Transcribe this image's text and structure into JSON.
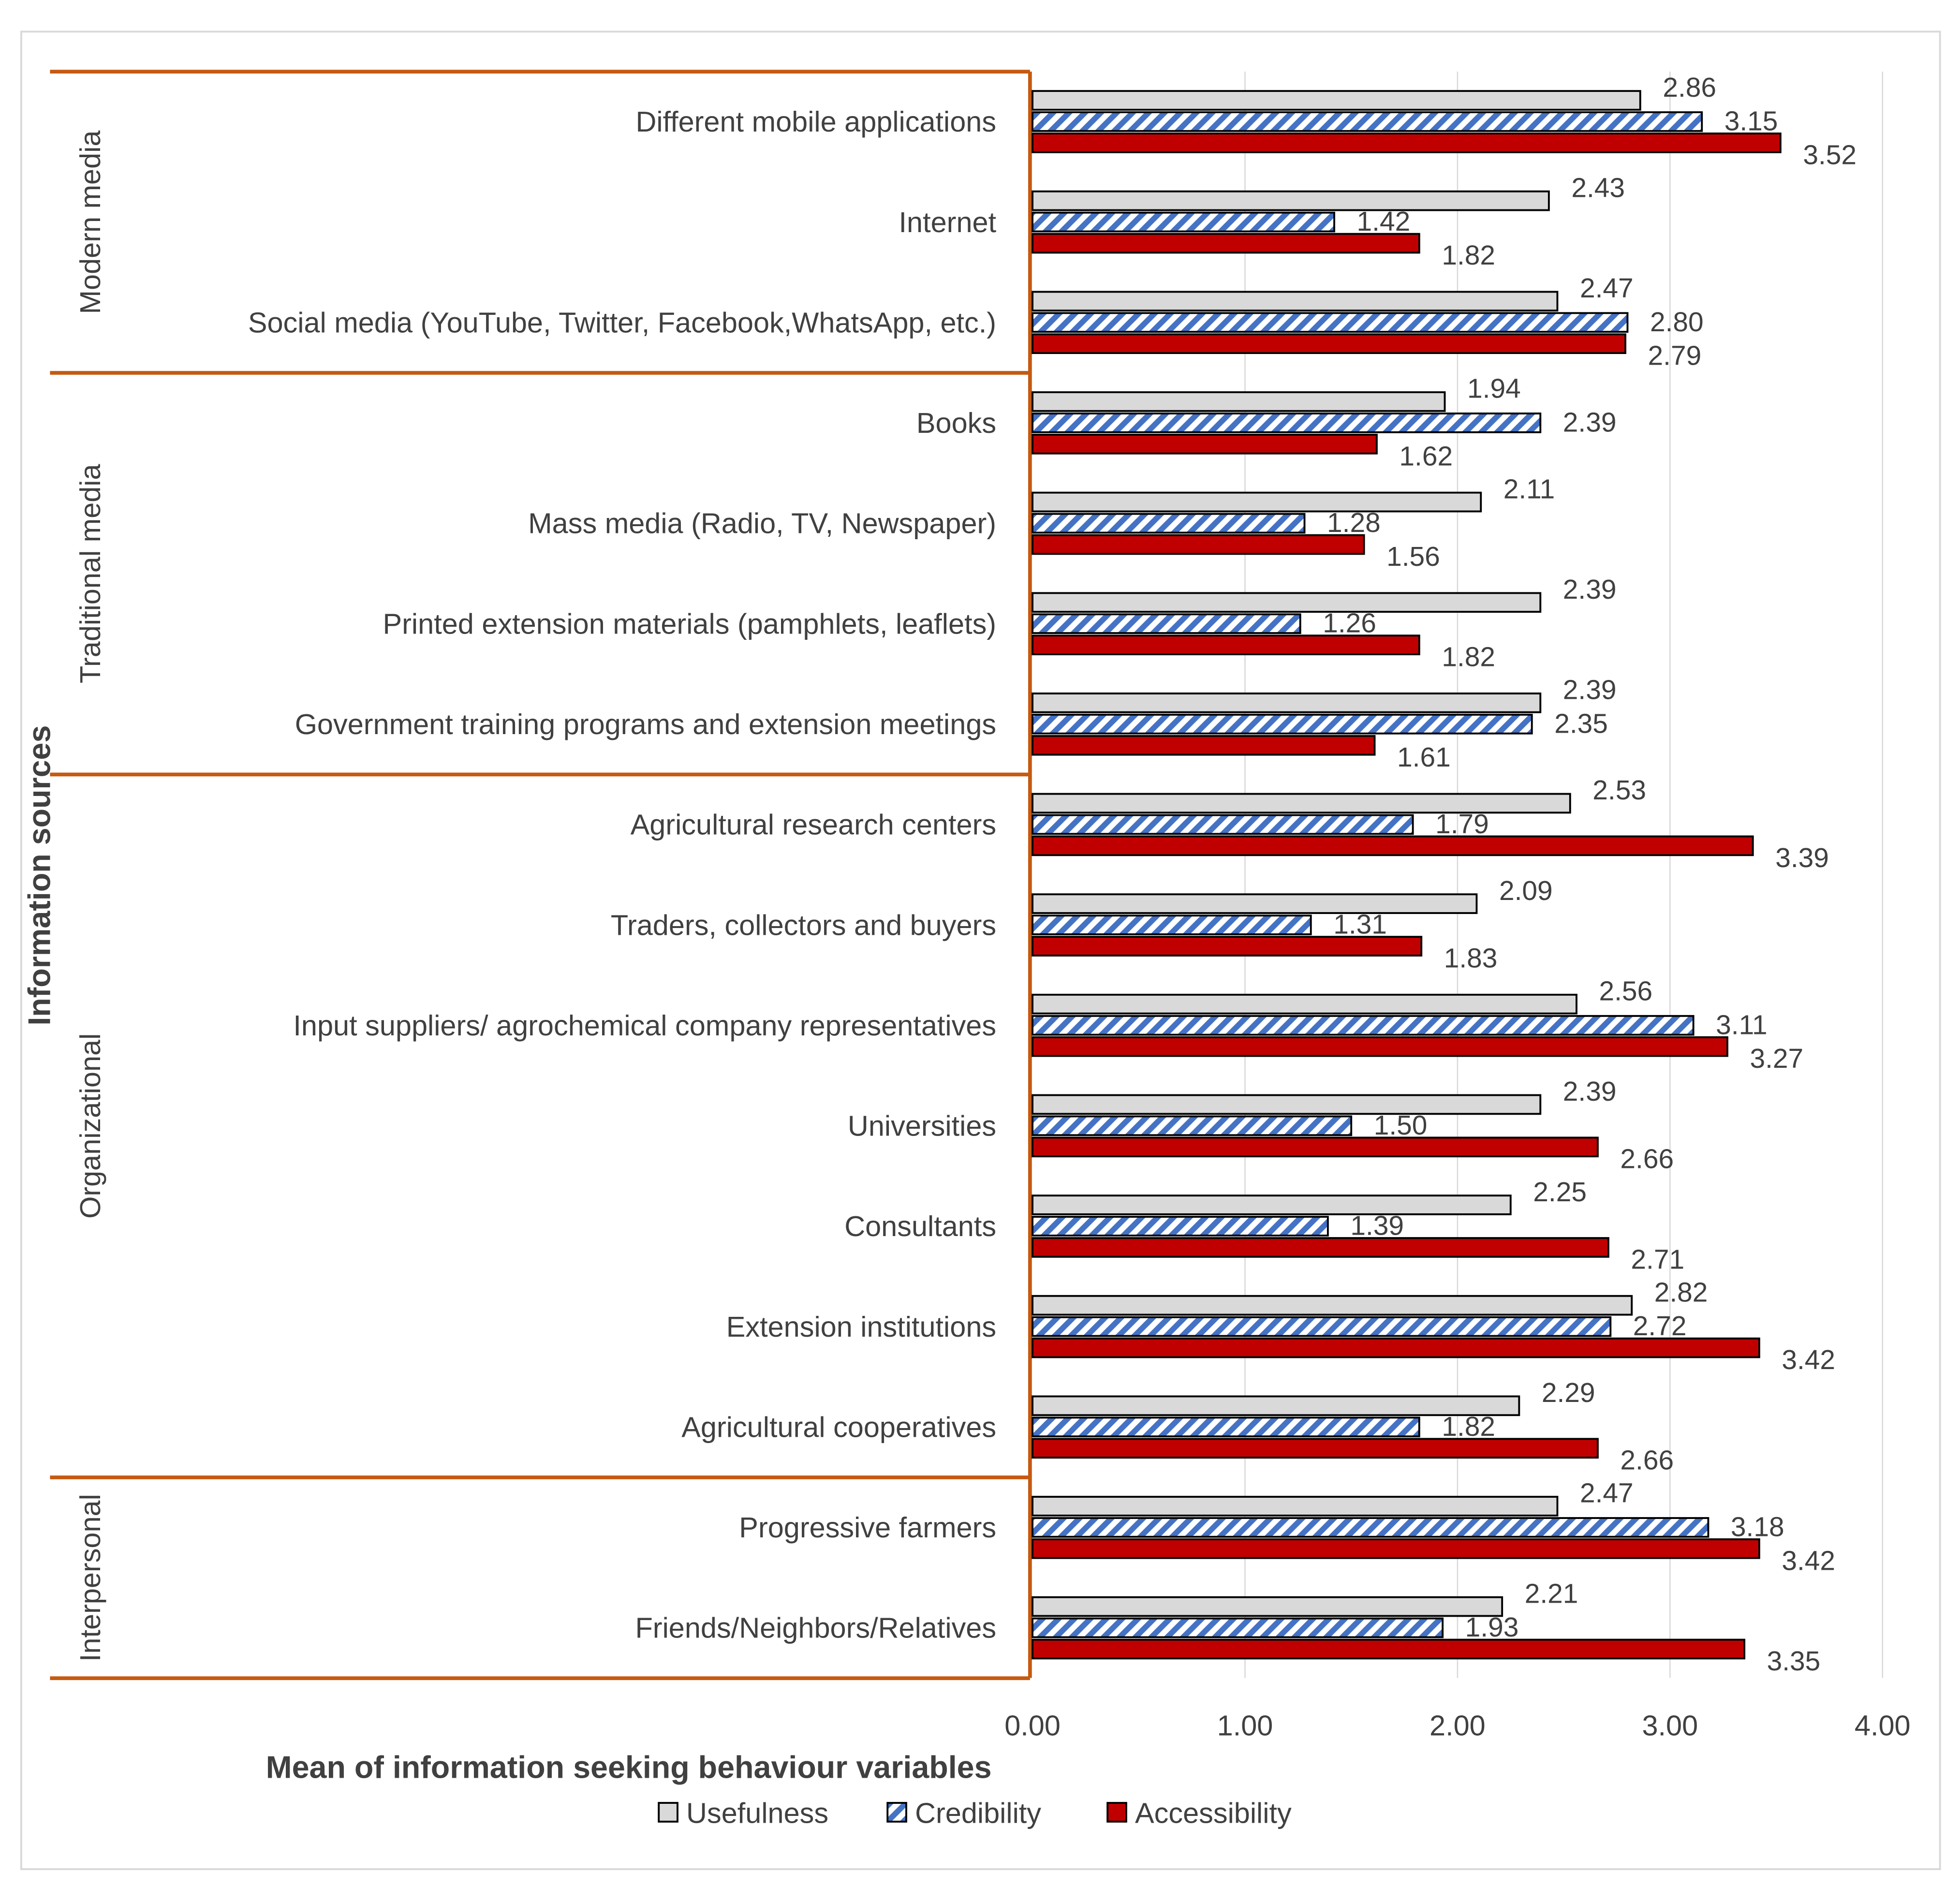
{
  "chart_data": {
    "type": "bar",
    "orientation": "horizontal",
    "title": "",
    "xlabel": "Mean of information seeking behaviour variables",
    "ylabel": "Information sources",
    "xlim": [
      0,
      4
    ],
    "xticks": [
      "0.00",
      "1.00",
      "2.00",
      "3.00",
      "4.00"
    ],
    "grid": "vertical",
    "legend_position": "bottom",
    "groups": [
      {
        "label": "Modern media",
        "count": 3
      },
      {
        "label": "Traditional media",
        "count": 4
      },
      {
        "label": "Organizational",
        "count": 7
      },
      {
        "label": "Interpersonal",
        "count": 2
      }
    ],
    "categories": [
      "Different mobile applications",
      "Internet",
      "Social media (YouTube, Twitter, Facebook,WhatsApp, etc.)",
      "Books",
      "Mass media (Radio, TV, Newspaper)",
      "Printed extension materials (pamphlets, leaflets)",
      "Government training programs and extension meetings",
      "Agricultural research centers",
      "Traders, collectors and buyers",
      "Input suppliers/ agrochemical company representatives",
      "Universities",
      "Consultants",
      "Extension institutions",
      "Agricultural cooperatives",
      "Progressive farmers",
      "Friends/Neighbors/Relatives"
    ],
    "series": [
      {
        "name": "Usefulness",
        "color": "#d9d9d9",
        "pattern": "solid",
        "values": [
          2.86,
          2.43,
          2.47,
          1.94,
          2.11,
          2.39,
          2.39,
          2.53,
          2.09,
          2.56,
          2.39,
          2.25,
          2.82,
          2.29,
          2.47,
          2.21
        ]
      },
      {
        "name": "Credibility",
        "color": "#4472c4",
        "pattern": "diagonal-stripes",
        "values": [
          3.15,
          1.42,
          2.8,
          2.39,
          1.28,
          1.26,
          2.35,
          1.79,
          1.31,
          3.11,
          1.5,
          1.39,
          2.72,
          1.82,
          3.18,
          1.93
        ]
      },
      {
        "name": "Accessibility",
        "color": "#c00000",
        "pattern": "solid",
        "values": [
          3.52,
          1.82,
          2.79,
          1.62,
          1.56,
          1.82,
          1.61,
          3.39,
          1.83,
          3.27,
          2.66,
          2.71,
          3.42,
          2.66,
          3.42,
          3.35
        ]
      }
    ],
    "group_border_color": "#c55a11"
  }
}
